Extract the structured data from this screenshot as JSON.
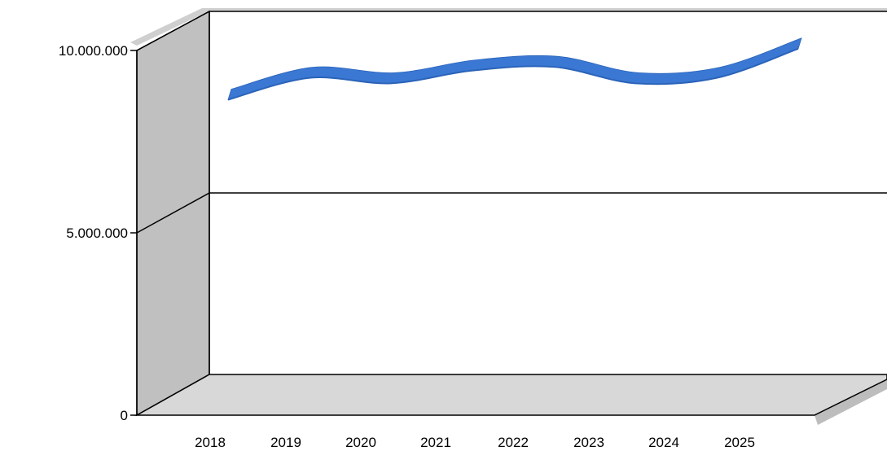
{
  "chart_data": {
    "type": "line",
    "style": "3d-ribbon",
    "categories": [
      "2018",
      "2019",
      "2020",
      "2021",
      "2022",
      "2023",
      "2024",
      "2025"
    ],
    "series": [
      {
        "values": [
          8750000,
          9350000,
          9200000,
          9550000,
          9650000,
          9200000,
          9350000,
          10150000
        ]
      }
    ],
    "ylim": [
      0,
      10000000
    ],
    "yticks": [
      0,
      5000000,
      10000000
    ],
    "ytick_labels": [
      "0",
      "5.000.000",
      "10.000.000"
    ],
    "grid": true,
    "legend": "none",
    "colors": {
      "series": "#3a78d4",
      "series_dark": "#2b63b8",
      "wall": "#c0c0c0",
      "floor": "#d8d8d8",
      "shadow": "#bdbdbd",
      "axis": "#000000"
    }
  }
}
